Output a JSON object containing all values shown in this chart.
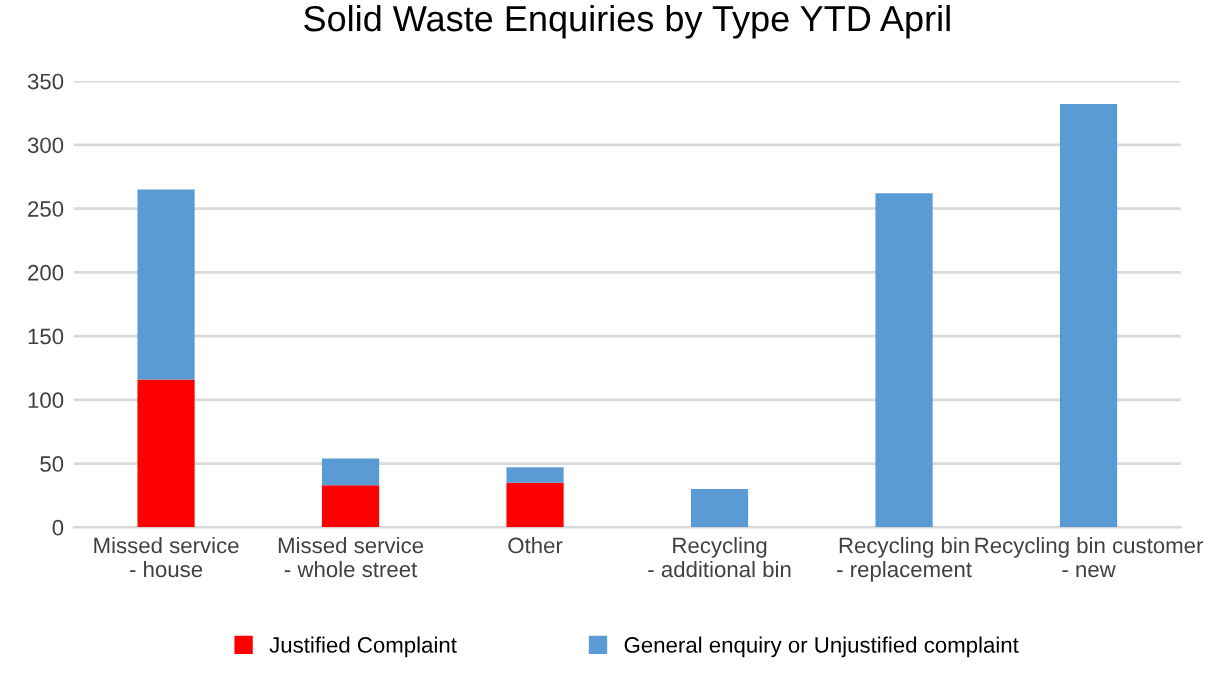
{
  "chart_data": {
    "type": "bar",
    "title": "Solid Waste Enquiries by Type YTD April",
    "categories": [
      "Missed service - house",
      "Missed service - whole street",
      "Other",
      "Recycling - additional bin",
      "Recycling bin - replacement",
      "Recycling bin customer - new"
    ],
    "stacked": true,
    "series": [
      {
        "name": "Justified Complaint",
        "color": "#ff0000",
        "values": [
          116,
          33,
          35,
          0,
          0,
          0
        ]
      },
      {
        "name": "General enquiry or Unjustified complaint",
        "color": "#5b9bd5",
        "values": [
          149,
          21,
          12,
          30,
          262,
          332
        ]
      }
    ],
    "ylim": [
      0,
      350
    ],
    "yticks": [
      0,
      50,
      100,
      150,
      200,
      250,
      300,
      350
    ],
    "grid": "y",
    "legend": "bottom"
  }
}
